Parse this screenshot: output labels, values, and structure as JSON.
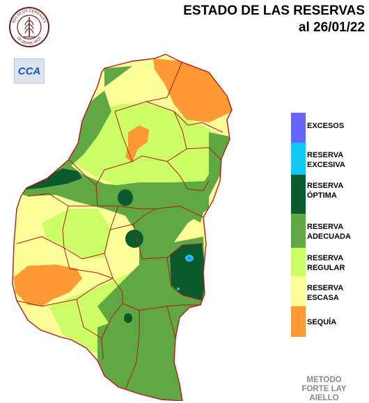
{
  "header": {
    "title_line1": "ESTADO DE LAS RESERVAS",
    "title_line2": "al 26/01/22"
  },
  "logos": {
    "seal_text_top": "BOLSA DE CEREALES",
    "seal_text_bottom": "DE ENTRE RIOS",
    "cca_text": "CCA"
  },
  "legend": {
    "items": [
      {
        "label": "EXCESOS",
        "color": "#6666ff"
      },
      {
        "label": "RESERVA\nEXCESIVA",
        "color": "#12c8f5"
      },
      {
        "label": "RESERVA\nÓPTIMA",
        "color": "#0b5a2b"
      },
      {
        "label": "RESERVA\nADECUADA",
        "color": "#5fa844"
      },
      {
        "label": "RESERVA\nREGULAR",
        "color": "#ccff66"
      },
      {
        "label": "RESERVA\nESCASA",
        "color": "#ffff99"
      },
      {
        "label": "SEQUÍA",
        "color": "#ff9933"
      }
    ]
  },
  "method": {
    "text": "METODO\nFORTE LAY\nAIELLO"
  }
}
